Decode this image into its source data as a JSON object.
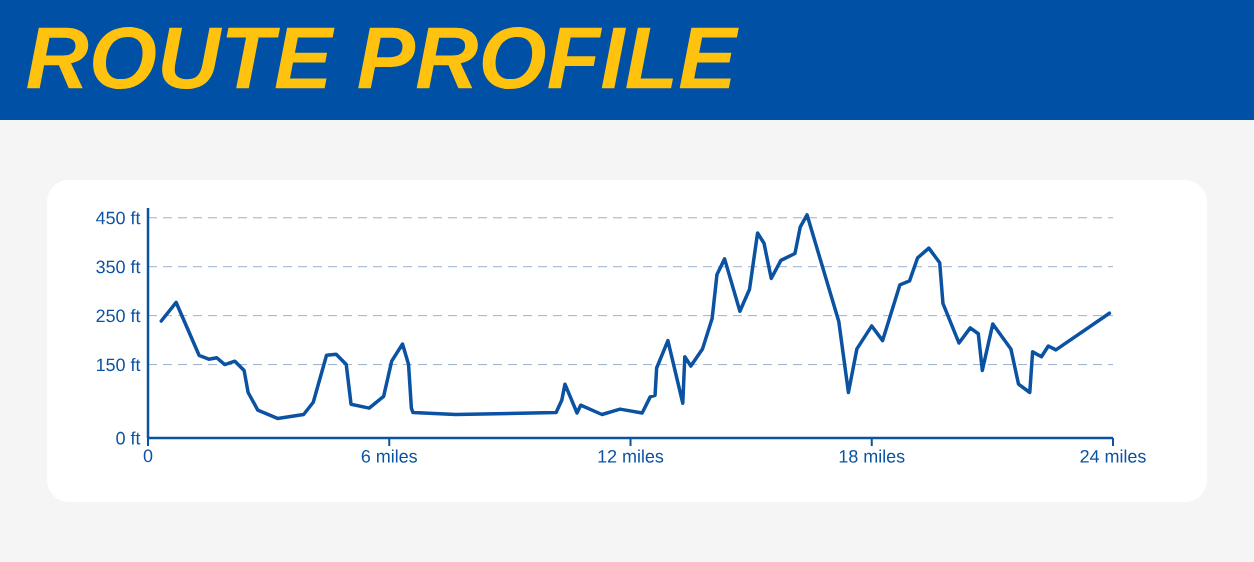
{
  "chart_data": {
    "type": "line",
    "title": "ROUTE PROFILE",
    "x": [
      0.33,
      0.7,
      1.27,
      1.51,
      1.71,
      1.91,
      2.16,
      2.39,
      2.49,
      2.73,
      3.22,
      3.87,
      4.11,
      4.44,
      4.68,
      4.93,
      5.05,
      5.5,
      5.86,
      6.06,
      6.33,
      6.48,
      6.55,
      6.59,
      7.65,
      10.15,
      10.29,
      10.37,
      10.67,
      10.76,
      11.29,
      11.74,
      12.29,
      12.49,
      12.61,
      12.65,
      12.93,
      13.3,
      13.35,
      13.5,
      13.79,
      14.03,
      14.15,
      14.34,
      14.72,
      14.96,
      15.16,
      15.32,
      15.5,
      15.74,
      16.09,
      16.22,
      16.39,
      17.18,
      17.42,
      17.63,
      18.0,
      18.27,
      18.7,
      18.94,
      19.14,
      19.42,
      19.69,
      19.77,
      20.17,
      20.45,
      20.65,
      20.75,
      21.01,
      21.46,
      21.65,
      21.93,
      22.0,
      22.22,
      22.39,
      22.58,
      23.91
    ],
    "values": [
      239,
      277,
      169,
      161,
      164,
      150,
      157,
      138,
      93,
      57,
      40,
      48,
      73,
      169,
      171,
      150,
      69,
      61,
      85,
      157,
      192,
      150,
      61,
      52,
      48,
      52,
      77,
      110,
      51,
      67,
      48,
      59,
      51,
      84,
      87,
      143,
      199,
      71,
      166,
      147,
      182,
      244,
      334,
      366,
      259,
      304,
      419,
      398,
      326,
      363,
      377,
      431,
      456,
      238,
      93,
      182,
      229,
      199,
      313,
      321,
      368,
      388,
      358,
      275,
      194,
      225,
      213,
      138,
      233,
      182,
      110,
      93,
      176,
      166,
      188,
      180,
      255
    ],
    "color": "#0b53a2",
    "xlim": [
      0,
      24
    ],
    "ylim": [
      0,
      470
    ],
    "xticks": [
      0,
      {
        "value": 6,
        "label": "6 miles"
      },
      {
        "value": 12,
        "label": "12 miles"
      },
      {
        "value": 18,
        "label": "18 miles"
      },
      {
        "value": 24,
        "label": "24 miles"
      }
    ],
    "yticks": [
      {
        "value": 0,
        "label": "0 ft"
      },
      {
        "value": 150,
        "label": "150 ft"
      },
      {
        "value": 250,
        "label": "250 ft"
      },
      {
        "value": 350,
        "label": "350 ft"
      },
      {
        "value": 450,
        "label": "450 ft"
      }
    ],
    "grid": "y",
    "line_style": "solid",
    "marker": "none"
  }
}
